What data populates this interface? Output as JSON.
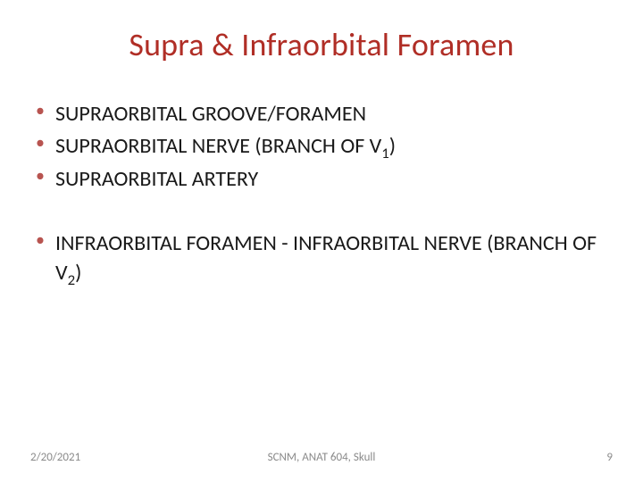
{
  "title": {
    "text": "Supra & Infraorbital Foramen",
    "color": "#b02e26",
    "fontsize": 36
  },
  "body": {
    "color": "#1a1a1a",
    "fontsize": 24,
    "bullet_color": "#b85450",
    "line_height": 1.35
  },
  "group1": {
    "items": [
      {
        "text": "SUPRAORBITAL GROOVE/FORAMEN",
        "indent_space": ""
      },
      {
        "text_pre": " SUPRAORBITAL NERVE (BRANCH OF V",
        "sub": "1",
        "text_post": ")"
      },
      {
        "text": " SUPRAORBITAL ARTERY"
      }
    ]
  },
  "group2": {
    "items": [
      {
        "text_pre": " INFRAORBITAL FORAMEN - INFRAORBITAL NERVE (BRANCH OF V",
        "sub": "2",
        "text_post": ")"
      }
    ]
  },
  "footer": {
    "date": "2/20/2021",
    "center": "SCNM, ANAT 604, Skull",
    "page": "9",
    "color": "#8a8a8a",
    "fontsize": 13
  }
}
